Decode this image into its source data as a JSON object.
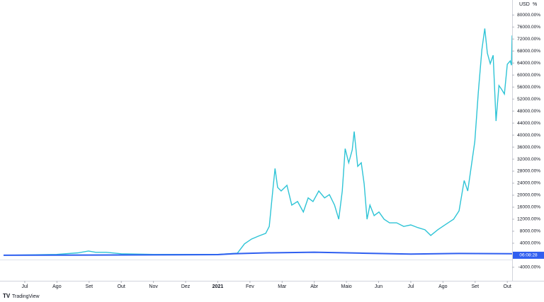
{
  "chart_data": {
    "type": "line",
    "currency": "USD",
    "scale_mode": "%",
    "price_tag": "06:08:28",
    "brand": "TradingView",
    "xlim": [
      -0.66,
      15.15
    ],
    "ylim": [
      -8500,
      85000
    ],
    "xticks": [
      {
        "value": 0,
        "label": "Jul"
      },
      {
        "value": 1,
        "label": "Ago"
      },
      {
        "value": 2,
        "label": "Set"
      },
      {
        "value": 3,
        "label": "Out"
      },
      {
        "value": 4,
        "label": "Nov"
      },
      {
        "value": 5,
        "label": "Dez"
      },
      {
        "value": 6,
        "label": "2021"
      },
      {
        "value": 7,
        "label": "Fev"
      },
      {
        "value": 8,
        "label": "Mar"
      },
      {
        "value": 9,
        "label": "Abr"
      },
      {
        "value": 10,
        "label": "Maio"
      },
      {
        "value": 11,
        "label": "Jun"
      },
      {
        "value": 12,
        "label": "Jul"
      },
      {
        "value": 13,
        "label": "Ago"
      },
      {
        "value": 14,
        "label": "Set"
      },
      {
        "value": 15,
        "label": "Out"
      }
    ],
    "yticks": [
      {
        "value": -4000,
        "label": "-4000.00%"
      },
      {
        "value": 4000,
        "label": "4000.00%"
      },
      {
        "value": 8000,
        "label": "8000.00%"
      },
      {
        "value": 12000,
        "label": "12000.00%"
      },
      {
        "value": 16000,
        "label": "16000.00%"
      },
      {
        "value": 20000,
        "label": "20000.00%"
      },
      {
        "value": 24000,
        "label": "24000.00%"
      },
      {
        "value": 28000,
        "label": "28000.00%"
      },
      {
        "value": 32000,
        "label": "32000.00%"
      },
      {
        "value": 36000,
        "label": "36000.00%"
      },
      {
        "value": 40000,
        "label": "40000.00%"
      },
      {
        "value": 44000,
        "label": "44000.00%"
      },
      {
        "value": 48000,
        "label": "48000.00%"
      },
      {
        "value": 52000,
        "label": "52000.00%"
      },
      {
        "value": 56000,
        "label": "56000.00%"
      },
      {
        "value": 60000,
        "label": "60000.00%"
      },
      {
        "value": 64000,
        "label": "64000.00%"
      },
      {
        "value": 68000,
        "label": "68000.00%"
      },
      {
        "value": 72000,
        "label": "72000.00%"
      },
      {
        "value": 76000,
        "label": "76000.00%"
      },
      {
        "value": 80000,
        "label": "80000.00%"
      }
    ],
    "series": [
      {
        "color": "#2ec4d6",
        "x": [
          -0.66,
          0,
          0.99,
          1.65,
          1.98,
          2.2,
          2.53,
          3.0,
          3.99,
          5.0,
          6.01,
          6.61,
          6.83,
          7.05,
          7.27,
          7.49,
          7.6,
          7.71,
          7.78,
          7.86,
          7.97,
          8.15,
          8.3,
          8.48,
          8.66,
          8.81,
          8.96,
          9.14,
          9.32,
          9.47,
          9.63,
          9.76,
          9.87,
          9.96,
          10.07,
          10.18,
          10.24,
          10.35,
          10.46,
          10.55,
          10.64,
          10.73,
          10.86,
          11.01,
          11.17,
          11.34,
          11.56,
          11.78,
          12.0,
          12.22,
          12.44,
          12.62,
          12.84,
          13.06,
          13.33,
          13.5,
          13.66,
          13.77,
          13.88,
          13.99,
          14.1,
          14.21,
          14.3,
          14.38,
          14.47,
          14.56,
          14.65,
          14.74,
          14.82,
          14.91,
          15.0,
          15.09,
          15.13,
          15.15
        ],
        "values": [
          0,
          100,
          300,
          800,
          1400,
          1000,
          1000,
          500,
          300,
          300,
          300,
          700,
          3800,
          5400,
          6400,
          7300,
          9600,
          21600,
          28900,
          22600,
          21400,
          23300,
          16700,
          17900,
          14400,
          19100,
          17900,
          21400,
          19100,
          20200,
          16700,
          12000,
          21400,
          35500,
          30800,
          35100,
          41200,
          29600,
          30800,
          23800,
          12000,
          16700,
          13200,
          14400,
          12000,
          10800,
          10800,
          9600,
          10100,
          9200,
          8500,
          6600,
          8500,
          10100,
          12000,
          14800,
          24900,
          21400,
          29600,
          37900,
          54400,
          68500,
          75500,
          67300,
          63800,
          66600,
          44700,
          56500,
          55300,
          53700,
          63600,
          64700,
          63300,
          73200
        ]
      },
      {
        "color": "#2f5ff0",
        "x": [
          -0.66,
          6,
          6.5,
          7.5,
          9,
          10.5,
          12,
          13.5,
          15.15
        ],
        "values": [
          0,
          200,
          500,
          800,
          1000,
          700,
          400,
          600,
          500
        ]
      }
    ]
  }
}
